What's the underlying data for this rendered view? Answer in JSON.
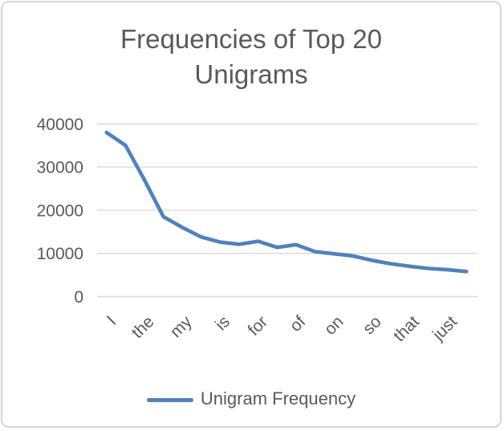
{
  "chart_data": {
    "type": "line",
    "title": "Frequencies of Top 20 Unigrams",
    "title_lines": [
      "Frequencies of Top 20",
      "Unigrams"
    ],
    "series": [
      {
        "name": "Unigram Frequency",
        "color": "#4F81BD",
        "values": [
          38000,
          35000,
          27000,
          18500,
          16000,
          13800,
          12600,
          12100,
          12800,
          11400,
          12000,
          10400,
          9900,
          9400,
          8400,
          7600,
          7000,
          6500,
          6200,
          5800
        ]
      }
    ],
    "num_points": 20,
    "x_tick_labels": [
      "I",
      "the",
      "my",
      "is",
      "for",
      "of",
      "on",
      "so",
      "that",
      "just"
    ],
    "x_label_every": 2,
    "y_ticks": [
      0,
      10000,
      20000,
      30000,
      40000
    ],
    "ylim": [
      0,
      40000
    ],
    "grid": true,
    "legend_position": "bottom",
    "legend_label": "Unigram Frequency",
    "colors": {
      "line": "#4F81BD",
      "text": "#595959",
      "gridline": "#d9d9d9",
      "frame_border": "#d6d6d6",
      "background": "#ffffff"
    }
  }
}
